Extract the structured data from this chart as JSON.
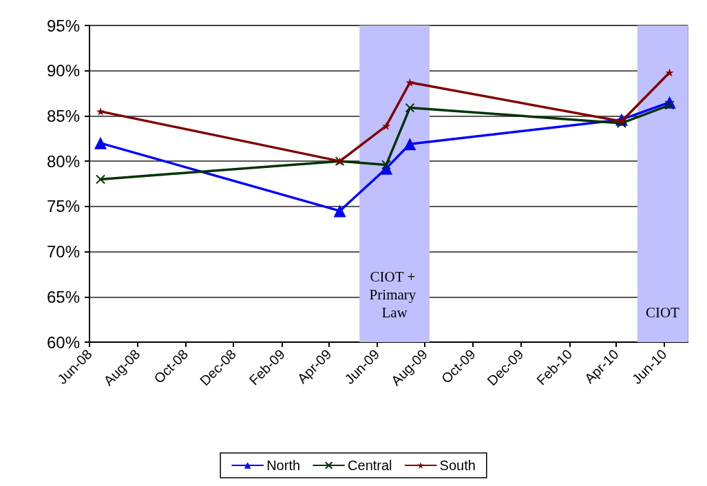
{
  "chart_data": {
    "type": "line",
    "x": [
      "2008-06-15",
      "2009-04-15",
      "2009-06-13",
      "2009-07-13",
      "2010-04-08",
      "2010-06-08"
    ],
    "series": [
      {
        "name": "North",
        "color": "#0000ff",
        "marker": "triangle",
        "values": [
          82.0,
          74.5,
          79.2,
          81.9,
          84.6,
          86.5
        ]
      },
      {
        "name": "Central",
        "color": "#003300",
        "marker": "cross",
        "values": [
          78.0,
          80.0,
          79.6,
          85.9,
          84.2,
          86.2
        ]
      },
      {
        "name": "South",
        "color": "#800000",
        "marker": "star",
        "values": [
          85.5,
          80.0,
          83.9,
          88.7,
          84.4,
          89.8
        ]
      }
    ],
    "xlim": [
      "2008-06-01",
      "2010-07-01"
    ],
    "xticks": [
      {
        "value": "2008-06-01",
        "label": "Jun-08"
      },
      {
        "value": "2008-08-01",
        "label": "Aug-08"
      },
      {
        "value": "2008-10-01",
        "label": "Oct-08"
      },
      {
        "value": "2008-12-01",
        "label": "Dec-08"
      },
      {
        "value": "2009-02-01",
        "label": "Feb-09"
      },
      {
        "value": "2009-04-01",
        "label": "Apr-09"
      },
      {
        "value": "2009-06-01",
        "label": "Jun-09"
      },
      {
        "value": "2009-08-01",
        "label": "Aug-09"
      },
      {
        "value": "2009-10-01",
        "label": "Oct-09"
      },
      {
        "value": "2009-12-01",
        "label": "Dec-09"
      },
      {
        "value": "2010-02-01",
        "label": "Feb-10"
      },
      {
        "value": "2010-04-01",
        "label": "Apr-10"
      },
      {
        "value": "2010-06-01",
        "label": "Jun-10"
      }
    ],
    "ylim": [
      60,
      95
    ],
    "yticks": [
      {
        "value": 60,
        "label": "60%"
      },
      {
        "value": 65,
        "label": "65%"
      },
      {
        "value": 70,
        "label": "70%"
      },
      {
        "value": 75,
        "label": "75%"
      },
      {
        "value": 80,
        "label": "80%"
      },
      {
        "value": 85,
        "label": "85%"
      },
      {
        "value": 90,
        "label": "90%"
      },
      {
        "value": 95,
        "label": "95%"
      }
    ],
    "bands": [
      {
        "axis": "x",
        "from": "2009-05-10",
        "to": "2009-08-07",
        "label": "CIOT + Primary Law",
        "color": "#c0c0ff"
      },
      {
        "axis": "x",
        "from": "2010-04-28",
        "to": "2010-07-01",
        "label": "CIOT",
        "color": "#c0c0ff"
      }
    ],
    "grid": "y",
    "legend": "bottom",
    "line_style": "solid"
  }
}
